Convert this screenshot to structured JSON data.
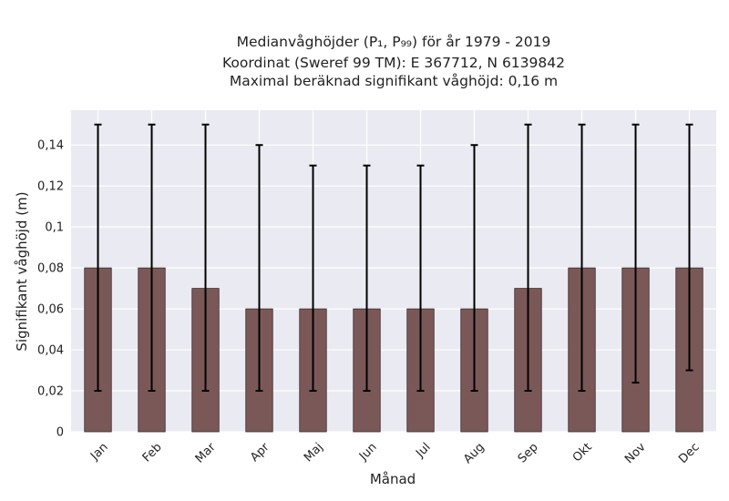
{
  "chart_data": {
    "type": "bar",
    "title_lines": [
      "Medianvåghöjder (P₁, P₉₉) för år 1979 - 2019",
      "Koordinat (Sweref 99 TM): E 367712, N 6139842",
      "Maximal beräknad signifikant våghöjd: 0,16 m"
    ],
    "xlabel": "Månad",
    "ylabel": "Signifikant våghöjd (m)",
    "ylim": [
      0,
      0.157
    ],
    "yticks": [
      0,
      0.02,
      0.04,
      0.06,
      0.08,
      0.1,
      0.12,
      0.14
    ],
    "ytick_labels": [
      "0",
      "0,02",
      "0,04",
      "0,06",
      "0,08",
      "0,1",
      "0,12",
      "0,14"
    ],
    "categories": [
      "Jan",
      "Feb",
      "Mar",
      "Apr",
      "Maj",
      "Jun",
      "Jul",
      "Aug",
      "Sep",
      "Okt",
      "Nov",
      "Dec"
    ],
    "values": [
      0.08,
      0.08,
      0.07,
      0.06,
      0.06,
      0.06,
      0.06,
      0.06,
      0.07,
      0.08,
      0.08,
      0.08
    ],
    "p1": [
      0.02,
      0.02,
      0.02,
      0.02,
      0.02,
      0.02,
      0.02,
      0.02,
      0.02,
      0.02,
      0.024,
      0.03
    ],
    "p99": [
      0.15,
      0.15,
      0.15,
      0.14,
      0.13,
      0.13,
      0.13,
      0.14,
      0.15,
      0.15,
      0.15,
      0.15
    ],
    "grid": true,
    "colors": {
      "bar": "#7b5858",
      "bar_edge": "#3a2a2a",
      "error": "#000000",
      "background": "#eaeaf2",
      "grid": "#ffffff"
    }
  }
}
